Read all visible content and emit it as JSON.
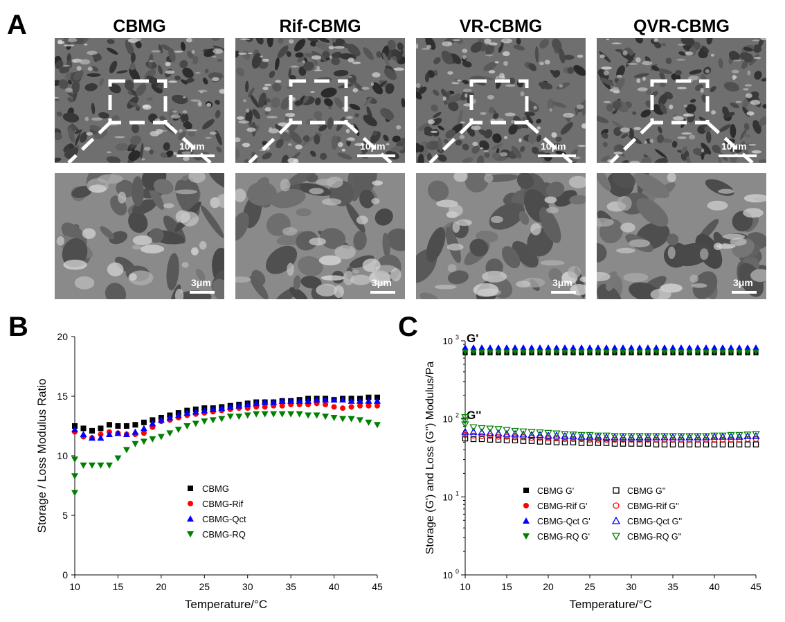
{
  "panels": {
    "a": "A",
    "b": "B",
    "c": "C"
  },
  "panel_a": {
    "columns": [
      {
        "title": "CBMG",
        "scale_top": "10μm",
        "scale_bottom": "3μm"
      },
      {
        "title": "Rif-CBMG",
        "scale_top": "10μm",
        "scale_bottom": "3μm"
      },
      {
        "title": "VR-CBMG",
        "scale_top": "10μm",
        "scale_bottom": "3μm"
      },
      {
        "title": "QVR-CBMG",
        "scale_top": "10μm",
        "scale_bottom": "3μm"
      }
    ]
  },
  "chart_data": [
    {
      "type": "scatter",
      "panel": "B",
      "xlabel": "Temperature/°C",
      "ylabel": "Storage / Loss Modulus Ratio",
      "xlim": [
        10,
        45
      ],
      "ylim": [
        0,
        20
      ],
      "xticks": [
        10,
        15,
        20,
        25,
        30,
        35,
        40,
        45
      ],
      "yticks": [
        0,
        5,
        10,
        15,
        20
      ],
      "legend_position": "center-left",
      "x": [
        10,
        11,
        12,
        13,
        14,
        15,
        16,
        17,
        18,
        19,
        20,
        21,
        22,
        23,
        24,
        25,
        26,
        27,
        28,
        29,
        30,
        31,
        32,
        33,
        34,
        35,
        36,
        37,
        38,
        39,
        40,
        41,
        42,
        43,
        44,
        45
      ],
      "series": [
        {
          "name": "CBMG",
          "marker": "square",
          "color": "#000000",
          "values": [
            12.5,
            12.3,
            12.1,
            12.3,
            12.6,
            12.5,
            12.5,
            12.6,
            12.8,
            13.0,
            13.2,
            13.4,
            13.6,
            13.8,
            13.9,
            14.0,
            14.0,
            14.1,
            14.2,
            14.3,
            14.4,
            14.5,
            14.5,
            14.5,
            14.6,
            14.6,
            14.7,
            14.8,
            14.8,
            14.8,
            14.7,
            14.8,
            14.8,
            14.8,
            14.9,
            14.9
          ]
        },
        {
          "name": "CBMG-Rif",
          "marker": "circle",
          "color": "#ff0000",
          "values": [
            12.0,
            11.6,
            11.5,
            11.8,
            12.0,
            11.9,
            11.8,
            11.8,
            11.9,
            12.4,
            12.9,
            13.0,
            13.2,
            13.4,
            13.5,
            13.6,
            13.7,
            13.8,
            13.9,
            14.0,
            14.0,
            14.1,
            14.1,
            14.2,
            14.2,
            14.3,
            14.3,
            14.3,
            14.4,
            14.3,
            14.1,
            14.0,
            14.1,
            14.2,
            14.2,
            14.2
          ]
        },
        {
          "name": "CBMG-Qct",
          "marker": "triangle-up",
          "color": "#0000ff",
          "values": [
            12.2,
            11.8,
            11.5,
            11.5,
            11.8,
            11.9,
            11.8,
            12.0,
            12.3,
            12.7,
            13.0,
            13.2,
            13.4,
            13.6,
            13.7,
            13.8,
            13.9,
            14.0,
            14.1,
            14.2,
            14.3,
            14.4,
            14.5,
            14.5,
            14.6,
            14.6,
            14.6,
            14.6,
            14.7,
            14.7,
            14.7,
            14.7,
            14.6,
            14.6,
            14.6,
            14.6
          ]
        },
        {
          "name": "CBMG-RQ",
          "marker": "triangle-down",
          "color": "#008000",
          "values": [
            9.7,
            9.2,
            9.2,
            9.2,
            9.2,
            9.8,
            10.5,
            11.0,
            11.2,
            11.4,
            11.6,
            11.9,
            12.2,
            12.5,
            12.7,
            12.9,
            13.0,
            13.1,
            13.3,
            13.3,
            13.4,
            13.5,
            13.5,
            13.5,
            13.5,
            13.5,
            13.5,
            13.4,
            13.4,
            13.3,
            13.2,
            13.1,
            13.1,
            13.0,
            12.8,
            12.6
          ]
        }
      ],
      "extra_points": [
        {
          "series": "CBMG-RQ",
          "x": 10,
          "y": 8.3
        },
        {
          "series": "CBMG-RQ",
          "x": 10,
          "y": 6.9
        }
      ]
    },
    {
      "type": "scatter",
      "panel": "C",
      "xlabel": "Temperature/°C",
      "ylabel": "Storage (G') and Loss (G'') Modulus/Pa",
      "yscale": "log",
      "xlim": [
        10,
        45
      ],
      "ylim": [
        1,
        1000
      ],
      "xticks": [
        10,
        15,
        20,
        25,
        30,
        35,
        40,
        45
      ],
      "yticks": [
        1,
        10,
        100,
        1000
      ],
      "ytick_labels": [
        {
          "base": "10",
          "exp": "0"
        },
        {
          "base": "10",
          "exp": "1"
        },
        {
          "base": "10",
          "exp": "2"
        },
        {
          "base": "10",
          "exp": "3"
        }
      ],
      "annotations": [
        "G'",
        "G''"
      ],
      "legend_position": "bottom-center",
      "x": [
        10,
        11,
        12,
        13,
        14,
        15,
        16,
        17,
        18,
        19,
        20,
        21,
        22,
        23,
        24,
        25,
        26,
        27,
        28,
        29,
        30,
        31,
        32,
        33,
        34,
        35,
        36,
        37,
        38,
        39,
        40,
        41,
        42,
        43,
        44,
        45
      ],
      "series": [
        {
          "name": "CBMG  G'",
          "marker": "square",
          "filled": true,
          "color": "#000000",
          "values": [
            700,
            700,
            700,
            700,
            700,
            700,
            700,
            700,
            700,
            700,
            700,
            700,
            700,
            700,
            700,
            700,
            700,
            700,
            700,
            700,
            700,
            700,
            700,
            700,
            700,
            700,
            700,
            700,
            700,
            700,
            700,
            700,
            700,
            700,
            700,
            700
          ]
        },
        {
          "name": "CBMG-Rif  G'",
          "marker": "circle",
          "filled": true,
          "color": "#ff0000",
          "values": [
            760,
            760,
            760,
            760,
            760,
            760,
            760,
            760,
            760,
            760,
            760,
            760,
            760,
            760,
            760,
            760,
            760,
            760,
            760,
            760,
            760,
            760,
            760,
            760,
            760,
            760,
            760,
            760,
            760,
            760,
            760,
            760,
            760,
            760,
            760,
            760
          ]
        },
        {
          "name": "CBMG-Qct G'",
          "marker": "triangle-up",
          "filled": true,
          "color": "#0000ff",
          "values": [
            820,
            820,
            820,
            820,
            820,
            820,
            820,
            820,
            820,
            820,
            820,
            820,
            820,
            820,
            820,
            820,
            820,
            820,
            820,
            820,
            820,
            820,
            820,
            820,
            820,
            820,
            820,
            820,
            820,
            820,
            820,
            820,
            820,
            820,
            820,
            820
          ]
        },
        {
          "name": "CBMG-RQ G'",
          "marker": "triangle-down",
          "filled": true,
          "color": "#008000",
          "values": [
            720,
            720,
            720,
            720,
            720,
            720,
            720,
            720,
            720,
            720,
            720,
            720,
            720,
            720,
            720,
            720,
            720,
            720,
            720,
            720,
            720,
            720,
            720,
            720,
            720,
            720,
            720,
            720,
            720,
            720,
            720,
            720,
            720,
            720,
            720,
            720
          ]
        },
        {
          "name": "CBMG  G''",
          "marker": "square",
          "filled": false,
          "color": "#000000",
          "values": [
            56,
            55,
            55,
            54,
            54,
            53,
            53,
            52,
            52,
            51,
            51,
            50,
            50,
            50,
            49,
            49,
            49,
            49,
            48,
            48,
            48,
            48,
            48,
            47,
            47,
            47,
            47,
            47,
            47,
            47,
            47,
            47,
            47,
            47,
            47,
            47
          ]
        },
        {
          "name": "CBMG-Rif  G''",
          "marker": "circle",
          "filled": false,
          "color": "#ff0000",
          "values": [
            62,
            61,
            60,
            60,
            59,
            59,
            58,
            58,
            57,
            57,
            56,
            56,
            55,
            55,
            55,
            54,
            54,
            54,
            54,
            54,
            54,
            54,
            54,
            54,
            54,
            54,
            54,
            54,
            54,
            54,
            54,
            54,
            54,
            54,
            55,
            55
          ]
        },
        {
          "name": "CBMG-Qct G''",
          "marker": "triangle-up",
          "filled": false,
          "color": "#0000ff",
          "values": [
            68,
            68,
            67,
            66,
            65,
            64,
            64,
            63,
            62,
            62,
            61,
            61,
            60,
            60,
            59,
            59,
            59,
            58,
            58,
            58,
            58,
            58,
            58,
            58,
            58,
            58,
            58,
            58,
            58,
            58,
            59,
            59,
            59,
            59,
            60,
            60
          ]
        },
        {
          "name": "CBMG-RQ G''",
          "marker": "triangle-down",
          "filled": false,
          "color": "#008000",
          "values": [
            85,
            78,
            76,
            75,
            74,
            72,
            70,
            69,
            68,
            67,
            66,
            65,
            64,
            63,
            62,
            62,
            61,
            61,
            60,
            60,
            60,
            60,
            60,
            60,
            60,
            60,
            60,
            60,
            60,
            60,
            61,
            61,
            62,
            62,
            63,
            64
          ]
        }
      ],
      "extra_points": [
        {
          "series": "CBMG-RQ G''",
          "x": 10,
          "y": 105
        },
        {
          "series": "CBMG-RQ G''",
          "x": 10,
          "y": 95
        }
      ]
    }
  ]
}
